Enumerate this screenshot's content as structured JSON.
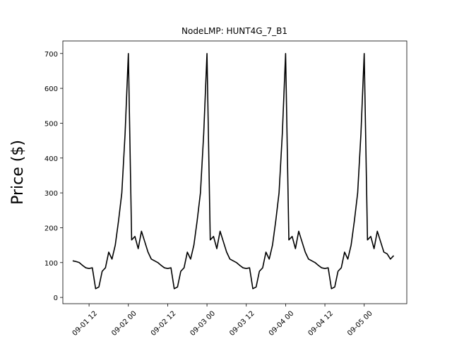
{
  "chart_data": {
    "type": "line",
    "title": "NodeLMP: HUNT4G_7_B1",
    "y_label": "Price ($)",
    "x": [
      "09-01 07",
      "09-01 08",
      "09-01 09",
      "09-01 10",
      "09-01 11",
      "09-01 12",
      "09-01 13",
      "09-01 14",
      "09-01 15",
      "09-01 16",
      "09-01 17",
      "09-01 18",
      "09-01 19",
      "09-01 20",
      "09-01 21",
      "09-01 22",
      "09-01 23",
      "09-02 00",
      "09-02 01",
      "09-02 02",
      "09-02 03",
      "09-02 04",
      "09-02 05",
      "09-02 06",
      "09-02 07",
      "09-02 08",
      "09-02 09",
      "09-02 10",
      "09-02 11",
      "09-02 12",
      "09-02 13",
      "09-02 14",
      "09-02 15",
      "09-02 16",
      "09-02 17",
      "09-02 18",
      "09-02 19",
      "09-02 20",
      "09-02 21",
      "09-02 22",
      "09-02 23",
      "09-03 00",
      "09-03 01",
      "09-03 02",
      "09-03 03",
      "09-03 04",
      "09-03 05",
      "09-03 06",
      "09-03 07",
      "09-03 08",
      "09-03 09",
      "09-03 10",
      "09-03 11",
      "09-03 12",
      "09-03 13",
      "09-03 14",
      "09-03 15",
      "09-03 16",
      "09-03 17",
      "09-03 18",
      "09-03 19",
      "09-03 20",
      "09-03 21",
      "09-03 22",
      "09-03 23",
      "09-04 00",
      "09-04 01",
      "09-04 02",
      "09-04 03",
      "09-04 04",
      "09-04 05",
      "09-04 06",
      "09-04 07",
      "09-04 08",
      "09-04 09",
      "09-04 10",
      "09-04 11",
      "09-04 12",
      "09-04 13",
      "09-04 14",
      "09-04 15",
      "09-04 16",
      "09-04 17",
      "09-04 18",
      "09-04 19",
      "09-04 20",
      "09-04 21",
      "09-04 22",
      "09-04 23",
      "09-05 00",
      "09-05 01",
      "09-05 02",
      "09-05 03",
      "09-05 04",
      "09-05 05",
      "09-05 06",
      "09-05 07",
      "09-05 08",
      "09-05 09"
    ],
    "series": [
      {
        "name": "Price",
        "color": "#000000",
        "values": [
          105,
          103,
          100,
          92,
          85,
          83,
          85,
          25,
          30,
          75,
          85,
          130,
          110,
          150,
          220,
          300,
          470,
          700,
          165,
          175,
          140,
          190,
          160,
          130,
          110,
          105,
          100,
          92,
          85,
          83,
          85,
          25,
          30,
          75,
          85,
          130,
          110,
          150,
          220,
          300,
          470,
          700,
          165,
          175,
          140,
          190,
          160,
          130,
          110,
          105,
          100,
          92,
          85,
          83,
          85,
          25,
          30,
          75,
          85,
          130,
          110,
          150,
          220,
          300,
          470,
          700,
          165,
          175,
          140,
          190,
          160,
          130,
          110,
          105,
          100,
          92,
          85,
          83,
          85,
          25,
          30,
          75,
          85,
          130,
          110,
          150,
          220,
          300,
          470,
          700,
          165,
          175,
          140,
          190,
          160,
          130,
          125,
          110,
          120
        ]
      }
    ],
    "xlim": [
      "09-01 04",
      "09-05 13"
    ],
    "xticks": [
      "09-01 12",
      "09-02 00",
      "09-02 12",
      "09-03 00",
      "09-03 12",
      "09-04 00",
      "09-04 12",
      "09-05 00"
    ],
    "ylim": [
      -18,
      736
    ],
    "yticks": [
      0,
      100,
      200,
      300,
      400,
      500,
      600,
      700
    ],
    "grid": false
  }
}
